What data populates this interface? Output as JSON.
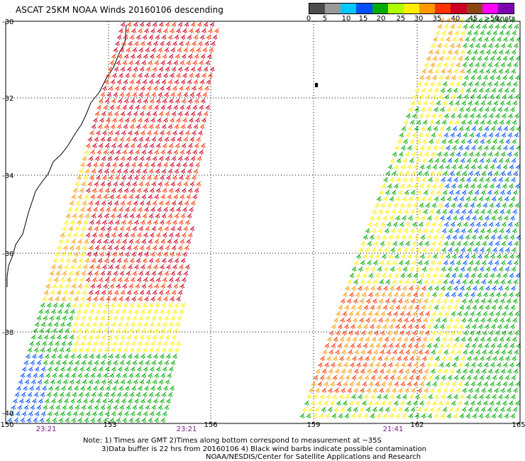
{
  "title": "ASCAT 25KM NOAA Winds 20160106 descending",
  "legend": {
    "ticks": [
      "0",
      "5",
      "10",
      "15",
      "20",
      "25",
      "30",
      "35",
      "40",
      "45",
      ">50"
    ],
    "unit": "knots",
    "colors": [
      "#4d4d4d",
      "#999999",
      "#00c8ff",
      "#0050ff",
      "#00aa00",
      "#b0ff00",
      "#ffee00",
      "#ff9900",
      "#ff3300",
      "#cc0022",
      "#8b4513",
      "#ff00ff",
      "#7f00b0"
    ]
  },
  "latitudes": [
    "-30",
    "-32",
    "-34",
    "-36",
    "-38",
    "-40"
  ],
  "longitudes": [
    "150",
    "153",
    "156",
    "159",
    "162",
    "165"
  ],
  "pass_times": [
    "23:21",
    "23:21",
    "21:41"
  ],
  "notes": {
    "line1": "Note: 1) Times are GMT 2)Times along bottom correspond to measurement at ~35S",
    "line2": "3)Data buffer is 22 hrs from 20160106 4) Black wind barbs indicate possible contamination",
    "line3": "NOAA/NESDIS/Center for Satellite Applications and Research"
  }
}
